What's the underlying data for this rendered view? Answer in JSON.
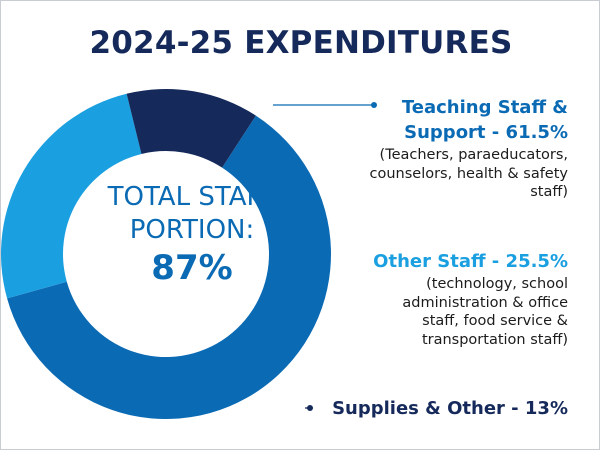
{
  "chart_data": {
    "type": "pie",
    "title": "2024-25 EXPENDITURES",
    "center_label": "TOTAL STAFF PORTION:",
    "center_value": "87%",
    "slices": [
      {
        "label": "Teaching Staff & Support - 61.5%",
        "value": 61.5,
        "color": "#0b6ab4",
        "description": "(Teachers, paraeducators, counselors, health & safety staff)"
      },
      {
        "label": "Other Staff - 25.5%",
        "value": 25.5,
        "color": "#1a9fe0",
        "description": "(technology, school administration & office staff, food service & transportation staff)"
      },
      {
        "label": "Supplies & Other - 13%",
        "value": 13,
        "color": "#15295a",
        "description": ""
      }
    ]
  }
}
